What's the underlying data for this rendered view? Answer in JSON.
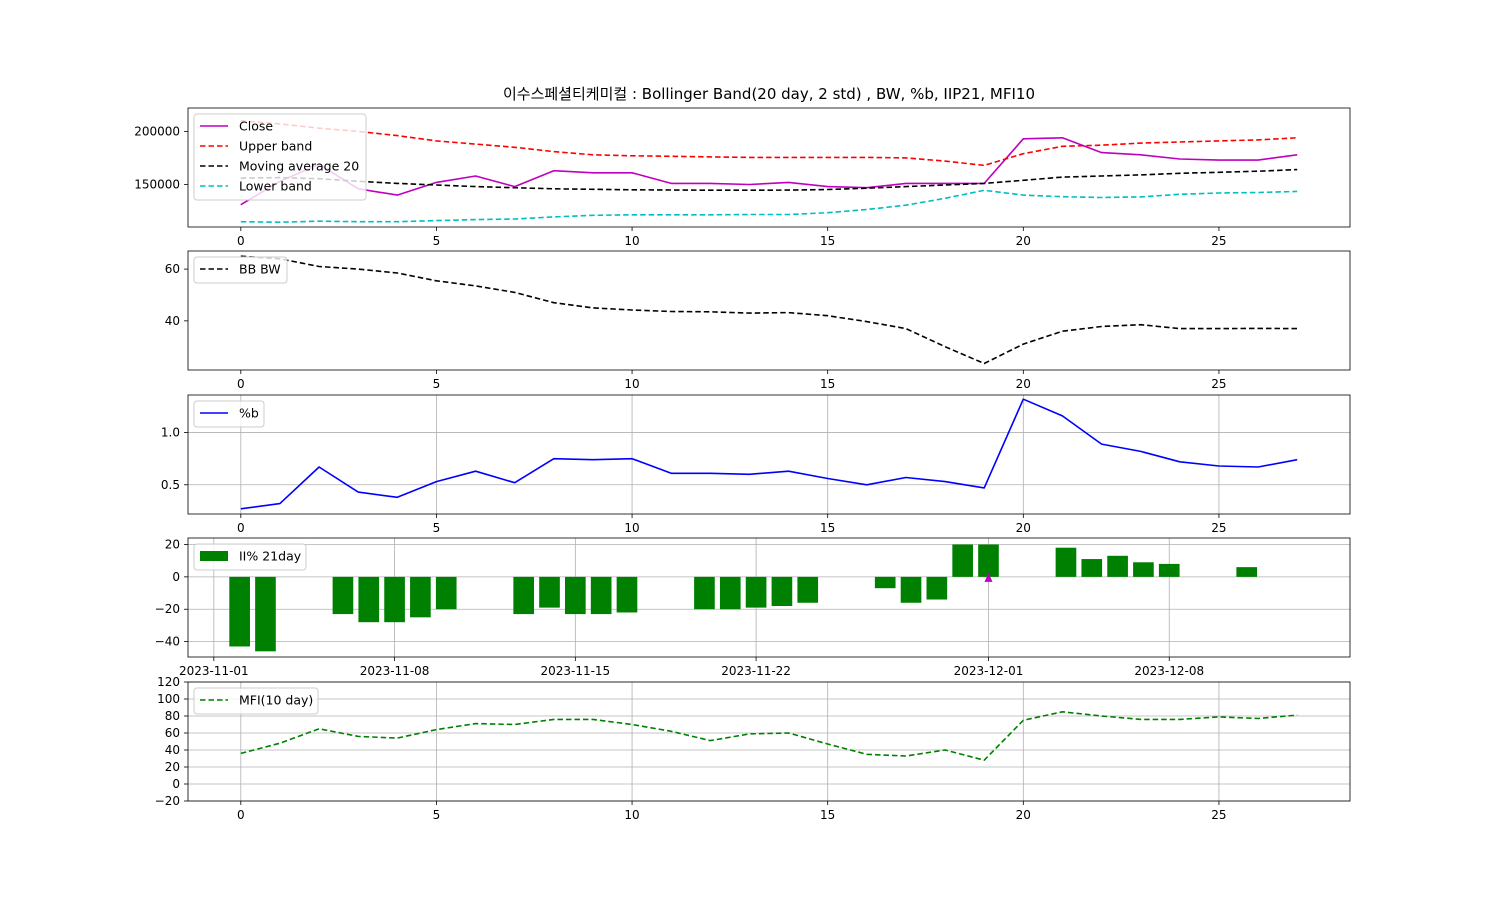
{
  "figure_title": "이수스페셜티케미컬 : Bollinger Band(20 day, 2 std) , BW, %b, IIP21, MFI10",
  "chart_data": [
    {
      "id": "bollinger",
      "type": "line",
      "x": [
        0,
        1,
        2,
        3,
        4,
        5,
        6,
        7,
        8,
        9,
        10,
        11,
        12,
        13,
        14,
        15,
        16,
        17,
        18,
        19,
        20,
        21,
        22,
        23,
        24,
        25,
        26,
        27
      ],
      "xlim": [
        -1.35,
        28.35
      ],
      "ylim": [
        110000,
        222000
      ],
      "x_ticks": [
        0,
        5,
        10,
        15,
        20,
        25
      ],
      "y_ticks": [
        150000,
        200000
      ],
      "y_tick_labels": [
        "150000",
        "200000"
      ],
      "grid": false,
      "legend": "upper-left",
      "series": [
        {
          "name": "Close",
          "color": "#bf00bf",
          "dash": false,
          "values": [
            131000,
            153000,
            169000,
            146000,
            140000,
            152000,
            158000,
            148000,
            163000,
            161000,
            161000,
            151000,
            151000,
            150000,
            152000,
            148000,
            147000,
            151000,
            151000,
            151000,
            193000,
            194000,
            180000,
            178000,
            174000,
            173000,
            173000,
            178000
          ]
        },
        {
          "name": "Upper band",
          "color": "#ff0000",
          "dash": true,
          "values": [
            210000,
            207000,
            203000,
            200000,
            196000,
            191000,
            188000,
            185000,
            181000,
            178000,
            177000,
            176500,
            176000,
            175500,
            175500,
            175500,
            175500,
            175000,
            172000,
            168000,
            179000,
            186000,
            187000,
            189000,
            190000,
            191000,
            192000,
            194000
          ]
        },
        {
          "name": "Moving average 20",
          "color": "#000000",
          "dash": true,
          "values": [
            156000,
            156500,
            155500,
            153000,
            151000,
            149500,
            148000,
            147000,
            146000,
            145500,
            145000,
            144800,
            144600,
            144600,
            144700,
            145300,
            146500,
            148000,
            149500,
            151000,
            154000,
            157000,
            158000,
            159000,
            160500,
            161500,
            162500,
            164000
          ]
        },
        {
          "name": "Lower band",
          "color": "#00bfbf",
          "dash": true,
          "values": [
            115000,
            114500,
            115500,
            115000,
            115000,
            116000,
            117000,
            117500,
            119500,
            121000,
            121500,
            121500,
            121500,
            121800,
            121800,
            123500,
            126500,
            130500,
            137000,
            144500,
            140000,
            138500,
            137800,
            138300,
            140800,
            142000,
            142500,
            143500
          ]
        }
      ]
    },
    {
      "id": "bandwidth",
      "type": "line",
      "x": [
        0,
        1,
        2,
        3,
        4,
        5,
        6,
        7,
        8,
        9,
        10,
        11,
        12,
        13,
        14,
        15,
        16,
        17,
        18,
        19,
        20,
        21,
        22,
        23,
        24,
        25,
        26,
        27
      ],
      "xlim": [
        -1.35,
        28.35
      ],
      "ylim": [
        21,
        67
      ],
      "x_ticks": [
        0,
        5,
        10,
        15,
        20,
        25
      ],
      "y_ticks": [
        40,
        60
      ],
      "y_tick_labels": [
        "40",
        "60"
      ],
      "grid": false,
      "legend": "upper-left",
      "series": [
        {
          "name": "BB BW",
          "color": "#000000",
          "dash": true,
          "values": [
            65,
            64,
            61,
            60,
            58.5,
            55.5,
            53.5,
            51,
            47,
            45,
            44.2,
            43.6,
            43.5,
            43,
            43.2,
            42,
            39.7,
            37,
            30,
            23.5,
            31,
            36,
            37.8,
            38.5,
            37,
            37,
            37.1,
            37
          ]
        }
      ]
    },
    {
      "id": "percent_b",
      "type": "line",
      "x": [
        0,
        1,
        2,
        3,
        4,
        5,
        6,
        7,
        8,
        9,
        10,
        11,
        12,
        13,
        14,
        15,
        16,
        17,
        18,
        19,
        20,
        21,
        22,
        23,
        24,
        25,
        26,
        27
      ],
      "xlim": [
        -1.35,
        28.35
      ],
      "ylim": [
        0.22,
        1.36
      ],
      "x_ticks": [
        0,
        5,
        10,
        15,
        20,
        25
      ],
      "y_ticks": [
        0.5,
        1.0
      ],
      "y_tick_labels": [
        "0.5",
        "1.0"
      ],
      "grid": true,
      "legend": "upper-left",
      "series": [
        {
          "name": "%b",
          "color": "#0000ff",
          "dash": false,
          "values": [
            0.27,
            0.32,
            0.67,
            0.43,
            0.38,
            0.53,
            0.63,
            0.52,
            0.75,
            0.74,
            0.75,
            0.61,
            0.61,
            0.6,
            0.63,
            0.56,
            0.5,
            0.57,
            0.53,
            0.47,
            1.32,
            1.16,
            0.89,
            0.82,
            0.72,
            0.68,
            0.67,
            0.74
          ]
        }
      ]
    },
    {
      "id": "iip21",
      "type": "bar",
      "x_type": "date",
      "xlim": [
        "2023-10-31",
        "2023-12-15"
      ],
      "ylim": [
        -49.5,
        24
      ],
      "y_ticks": [
        -40,
        -20,
        0,
        20
      ],
      "y_tick_labels": [
        "−40",
        "−20",
        "0",
        "20"
      ],
      "x_ticks": [
        "2023-11-01",
        "2023-11-08",
        "2023-11-15",
        "2023-11-22",
        "2023-12-01",
        "2023-12-08"
      ],
      "x_tick_labels": [
        "2023-11-01",
        "2023-11-08",
        "2023-11-15",
        "2023-11-22",
        "2023-12-01",
        "2023-12-08"
      ],
      "grid": true,
      "legend": "upper-left",
      "color": "#008000",
      "series_name": "II% 21day",
      "dates": [
        "2023-11-02",
        "2023-11-03",
        "2023-11-06",
        "2023-11-07",
        "2023-11-08",
        "2023-11-09",
        "2023-11-10",
        "2023-11-13",
        "2023-11-14",
        "2023-11-15",
        "2023-11-16",
        "2023-11-17",
        "2023-11-20",
        "2023-11-21",
        "2023-11-22",
        "2023-11-23",
        "2023-11-24",
        "2023-11-27",
        "2023-11-28",
        "2023-11-29",
        "2023-11-30",
        "2023-12-01",
        "2023-12-04",
        "2023-12-05",
        "2023-12-06",
        "2023-12-07",
        "2023-12-08",
        "2023-12-11"
      ],
      "values": [
        -43,
        -46,
        -23,
        -28,
        -28,
        -25,
        -20,
        -23,
        -19,
        -23,
        -23,
        -22,
        -20,
        -20,
        -19,
        -18,
        -16,
        -7,
        -16,
        -14,
        20,
        20,
        18,
        11,
        13,
        9,
        8,
        6
      ],
      "marker": {
        "date": "2023-12-01",
        "value": 0,
        "color": "#bf00bf",
        "shape": "triangle-up"
      }
    },
    {
      "id": "mfi10",
      "type": "line",
      "x": [
        0,
        1,
        2,
        3,
        4,
        5,
        6,
        7,
        8,
        9,
        10,
        11,
        12,
        13,
        14,
        15,
        16,
        17,
        18,
        19,
        20,
        21,
        22,
        23,
        24,
        25,
        26,
        27
      ],
      "xlim": [
        -1.35,
        28.35
      ],
      "ylim": [
        -20,
        120
      ],
      "x_ticks": [
        0,
        5,
        10,
        15,
        20,
        25
      ],
      "y_ticks": [
        -20,
        0,
        20,
        40,
        60,
        80,
        100,
        120
      ],
      "y_tick_labels": [
        "−20",
        "0",
        "20",
        "40",
        "60",
        "80",
        "100",
        "120"
      ],
      "grid": true,
      "legend": "upper-left",
      "series": [
        {
          "name": "MFI(10 day)",
          "color": "#008000",
          "dash": true,
          "values": [
            36,
            48,
            65,
            56,
            54,
            64,
            71,
            70,
            76,
            76,
            70,
            62,
            51,
            59,
            60,
            47,
            35,
            33,
            40,
            28,
            75,
            85,
            80,
            76,
            76,
            79,
            77,
            81
          ]
        }
      ]
    }
  ]
}
